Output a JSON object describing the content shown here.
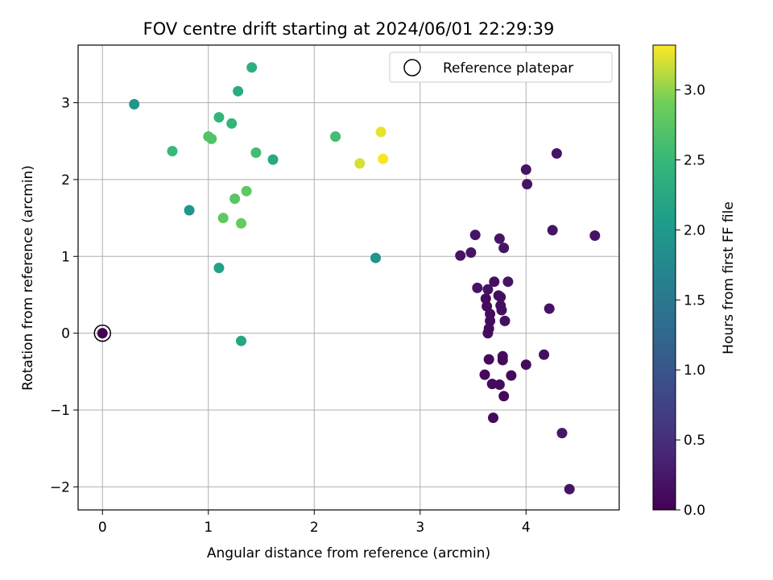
{
  "chart_data": {
    "type": "scatter",
    "title": "FOV centre drift starting at 2024/06/01 22:29:39",
    "xlabel": "Angular distance from reference (arcmin)",
    "ylabel": "Rotation from reference (arcmin)",
    "xlim": [
      -0.23,
      4.88
    ],
    "ylim": [
      -2.3,
      3.75
    ],
    "xticks": [
      0,
      1,
      2,
      3,
      4
    ],
    "yticks": [
      -2,
      -1,
      0,
      1,
      2,
      3
    ],
    "xtick_labels": [
      "0",
      "1",
      "2",
      "3",
      "4"
    ],
    "ytick_labels": [
      "−2",
      "−1",
      "0",
      "1",
      "2",
      "3"
    ],
    "grid": true,
    "legend": {
      "position": "top-right",
      "label": "Reference platepar"
    },
    "reference_point": {
      "x": 0,
      "y": 0
    },
    "colorbar": {
      "label": "Hours from first FF file",
      "colormap": "viridis",
      "range": [
        0.0,
        3.32
      ],
      "ticks": [
        0.0,
        0.5,
        1.0,
        1.5,
        2.0,
        2.5,
        3.0
      ],
      "tick_labels": [
        "0.0",
        "0.5",
        "1.0",
        "1.5",
        "2.0",
        "2.5",
        "3.0"
      ]
    },
    "points": [
      {
        "x": 0.0,
        "y": 0.0,
        "c": 0.0
      },
      {
        "x": 3.61,
        "y": -0.54,
        "c": 0.08
      },
      {
        "x": 3.65,
        "y": -0.34,
        "c": 0.08
      },
      {
        "x": 3.68,
        "y": -0.66,
        "c": 0.1
      },
      {
        "x": 3.69,
        "y": -1.1,
        "c": 0.1
      },
      {
        "x": 3.75,
        "y": -0.67,
        "c": 0.1
      },
      {
        "x": 3.78,
        "y": -0.3,
        "c": 0.1
      },
      {
        "x": 3.78,
        "y": -0.35,
        "c": 0.1
      },
      {
        "x": 3.79,
        "y": -0.82,
        "c": 0.1
      },
      {
        "x": 3.86,
        "y": -0.55,
        "c": 0.1
      },
      {
        "x": 4.0,
        "y": -0.41,
        "c": 0.12
      },
      {
        "x": 4.17,
        "y": -0.28,
        "c": 0.15
      },
      {
        "x": 4.34,
        "y": -1.3,
        "c": 0.25
      },
      {
        "x": 4.41,
        "y": -2.03,
        "c": 0.2
      },
      {
        "x": 3.64,
        "y": 0.0,
        "c": 0.15
      },
      {
        "x": 3.65,
        "y": 0.06,
        "c": 0.12
      },
      {
        "x": 3.66,
        "y": 0.16,
        "c": 0.12
      },
      {
        "x": 3.66,
        "y": 0.25,
        "c": 0.12
      },
      {
        "x": 3.63,
        "y": 0.35,
        "c": 0.12
      },
      {
        "x": 3.62,
        "y": 0.45,
        "c": 0.12
      },
      {
        "x": 3.64,
        "y": 0.57,
        "c": 0.18
      },
      {
        "x": 3.54,
        "y": 0.59,
        "c": 0.2
      },
      {
        "x": 3.7,
        "y": 0.67,
        "c": 0.15
      },
      {
        "x": 3.74,
        "y": 0.49,
        "c": 0.15
      },
      {
        "x": 3.76,
        "y": 0.47,
        "c": 0.15
      },
      {
        "x": 3.77,
        "y": 0.3,
        "c": 0.15
      },
      {
        "x": 3.8,
        "y": 0.16,
        "c": 0.15
      },
      {
        "x": 3.76,
        "y": 0.36,
        "c": 0.15
      },
      {
        "x": 3.83,
        "y": 0.67,
        "c": 0.2
      },
      {
        "x": 4.22,
        "y": 0.32,
        "c": 0.18
      },
      {
        "x": 3.38,
        "y": 1.01,
        "c": 0.2
      },
      {
        "x": 3.48,
        "y": 1.05,
        "c": 0.2
      },
      {
        "x": 3.52,
        "y": 1.28,
        "c": 0.2
      },
      {
        "x": 3.75,
        "y": 1.23,
        "c": 0.2
      },
      {
        "x": 3.79,
        "y": 1.11,
        "c": 0.2
      },
      {
        "x": 4.25,
        "y": 1.34,
        "c": 0.2
      },
      {
        "x": 4.65,
        "y": 1.27,
        "c": 0.2
      },
      {
        "x": 4.01,
        "y": 1.94,
        "c": 0.2
      },
      {
        "x": 4.0,
        "y": 2.13,
        "c": 0.2
      },
      {
        "x": 4.29,
        "y": 2.34,
        "c": 0.2
      },
      {
        "x": 0.3,
        "y": 2.98,
        "c": 1.95
      },
      {
        "x": 0.82,
        "y": 1.6,
        "c": 1.95
      },
      {
        "x": 2.58,
        "y": 0.98,
        "c": 1.95
      },
      {
        "x": 1.1,
        "y": 0.85,
        "c": 2.15
      },
      {
        "x": 1.31,
        "y": -0.1,
        "c": 2.2
      },
      {
        "x": 1.61,
        "y": 2.26,
        "c": 2.25
      },
      {
        "x": 1.28,
        "y": 3.15,
        "c": 2.3
      },
      {
        "x": 1.41,
        "y": 3.46,
        "c": 2.35
      },
      {
        "x": 1.1,
        "y": 2.81,
        "c": 2.45
      },
      {
        "x": 1.22,
        "y": 2.73,
        "c": 2.45
      },
      {
        "x": 0.66,
        "y": 2.37,
        "c": 2.5
      },
      {
        "x": 1.45,
        "y": 2.35,
        "c": 2.6
      },
      {
        "x": 2.2,
        "y": 2.56,
        "c": 2.6
      },
      {
        "x": 1.0,
        "y": 2.56,
        "c": 2.7
      },
      {
        "x": 1.03,
        "y": 2.53,
        "c": 2.7
      },
      {
        "x": 1.25,
        "y": 1.75,
        "c": 2.75
      },
      {
        "x": 1.36,
        "y": 1.85,
        "c": 2.8
      },
      {
        "x": 1.14,
        "y": 1.5,
        "c": 2.8
      },
      {
        "x": 1.31,
        "y": 1.43,
        "c": 2.85
      },
      {
        "x": 2.43,
        "y": 2.21,
        "c": 3.2
      },
      {
        "x": 2.63,
        "y": 2.62,
        "c": 3.25
      },
      {
        "x": 2.65,
        "y": 2.27,
        "c": 3.3
      }
    ]
  }
}
